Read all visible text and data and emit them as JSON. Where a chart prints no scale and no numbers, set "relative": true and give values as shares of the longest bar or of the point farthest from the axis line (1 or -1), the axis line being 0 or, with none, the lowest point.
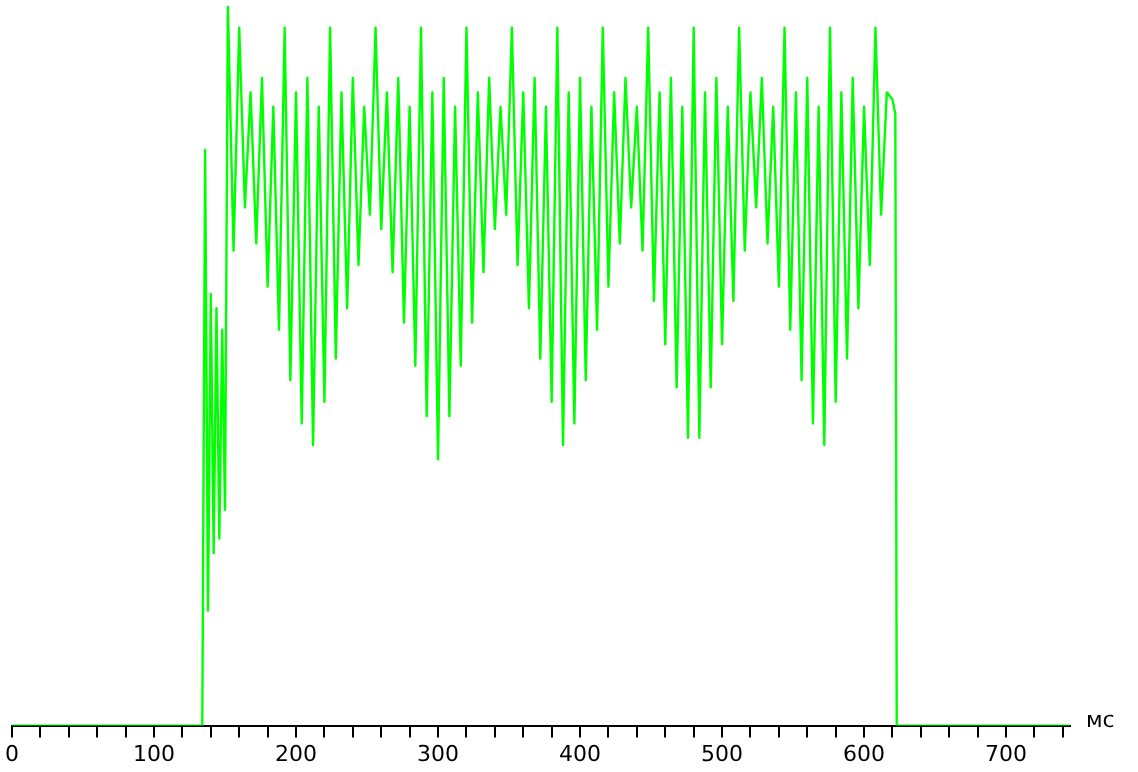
{
  "chart_data": {
    "type": "line",
    "xlabel": "мс",
    "relative": true,
    "grid": false,
    "legend": false,
    "marker": "none",
    "xlim": [
      0,
      745
    ],
    "xticks": [
      0,
      {
        "value": 20,
        "label": null
      },
      {
        "value": 40,
        "label": null
      },
      {
        "value": 60,
        "label": null
      },
      {
        "value": 80,
        "label": null
      },
      100,
      {
        "value": 120,
        "label": null
      },
      {
        "value": 140,
        "label": null
      },
      {
        "value": 160,
        "label": null
      },
      {
        "value": 180,
        "label": null
      },
      200,
      {
        "value": 220,
        "label": null
      },
      {
        "value": 240,
        "label": null
      },
      {
        "value": 260,
        "label": null
      },
      {
        "value": 280,
        "label": null
      },
      300,
      {
        "value": 320,
        "label": null
      },
      {
        "value": 340,
        "label": null
      },
      {
        "value": 360,
        "label": null
      },
      {
        "value": 380,
        "label": null
      },
      400,
      {
        "value": 420,
        "label": null
      },
      {
        "value": 440,
        "label": null
      },
      {
        "value": 460,
        "label": null
      },
      {
        "value": 480,
        "label": null
      },
      500,
      {
        "value": 520,
        "label": null
      },
      {
        "value": 540,
        "label": null
      },
      {
        "value": 560,
        "label": null
      },
      {
        "value": 580,
        "label": null
      },
      600,
      {
        "value": 620,
        "label": null
      },
      {
        "value": 640,
        "label": null
      },
      {
        "value": 660,
        "label": null
      },
      {
        "value": 680,
        "label": null
      },
      700,
      {
        "value": 720,
        "label": null
      },
      {
        "value": 740,
        "label": null
      }
    ],
    "series": [
      {
        "color": "#00ff00",
        "x": [
          0,
          134,
          136,
          138,
          140,
          142,
          144,
          146,
          148,
          150,
          152,
          156,
          160,
          164,
          168,
          172,
          176,
          180,
          184,
          188,
          192,
          196,
          200,
          204,
          208,
          212,
          216,
          220,
          224,
          228,
          232,
          236,
          240,
          244,
          248,
          252,
          256,
          260,
          264,
          268,
          272,
          276,
          280,
          284,
          288,
          292,
          296,
          300,
          304,
          308,
          312,
          316,
          320,
          324,
          328,
          332,
          336,
          340,
          344,
          348,
          352,
          356,
          360,
          364,
          368,
          372,
          376,
          380,
          384,
          388,
          392,
          396,
          400,
          404,
          408,
          412,
          416,
          420,
          424,
          428,
          432,
          436,
          440,
          444,
          448,
          452,
          456,
          460,
          464,
          468,
          472,
          476,
          480,
          484,
          488,
          492,
          496,
          500,
          504,
          508,
          512,
          516,
          520,
          524,
          528,
          532,
          536,
          540,
          544,
          548,
          552,
          556,
          560,
          564,
          568,
          572,
          576,
          580,
          584,
          588,
          592,
          596,
          600,
          604,
          608,
          612,
          616,
          620,
          622,
          623,
          745
        ],
        "values": [
          0,
          0,
          0.8,
          0.16,
          0.6,
          0.24,
          0.58,
          0.26,
          0.55,
          0.3,
          1.0,
          0.66,
          0.97,
          0.72,
          0.88,
          0.67,
          0.9,
          0.61,
          0.86,
          0.55,
          0.97,
          0.48,
          0.88,
          0.42,
          0.9,
          0.39,
          0.86,
          0.45,
          0.97,
          0.51,
          0.88,
          0.58,
          0.9,
          0.64,
          0.86,
          0.71,
          0.97,
          0.69,
          0.88,
          0.63,
          0.9,
          0.56,
          0.86,
          0.5,
          0.97,
          0.43,
          0.88,
          0.37,
          0.9,
          0.43,
          0.86,
          0.5,
          0.97,
          0.56,
          0.88,
          0.63,
          0.9,
          0.69,
          0.86,
          0.71,
          0.97,
          0.64,
          0.88,
          0.58,
          0.9,
          0.51,
          0.86,
          0.45,
          0.97,
          0.39,
          0.88,
          0.42,
          0.9,
          0.48,
          0.86,
          0.55,
          0.97,
          0.61,
          0.88,
          0.67,
          0.9,
          0.72,
          0.86,
          0.66,
          0.97,
          0.59,
          0.88,
          0.53,
          0.9,
          0.47,
          0.86,
          0.4,
          0.97,
          0.4,
          0.88,
          0.47,
          0.9,
          0.53,
          0.86,
          0.59,
          0.97,
          0.66,
          0.88,
          0.72,
          0.9,
          0.67,
          0.86,
          0.61,
          0.97,
          0.55,
          0.88,
          0.48,
          0.9,
          0.42,
          0.86,
          0.39,
          0.97,
          0.45,
          0.88,
          0.51,
          0.9,
          0.58,
          0.86,
          0.64,
          0.97,
          0.71,
          0.88,
          0.87,
          0.85,
          0,
          0
        ]
      }
    ]
  }
}
